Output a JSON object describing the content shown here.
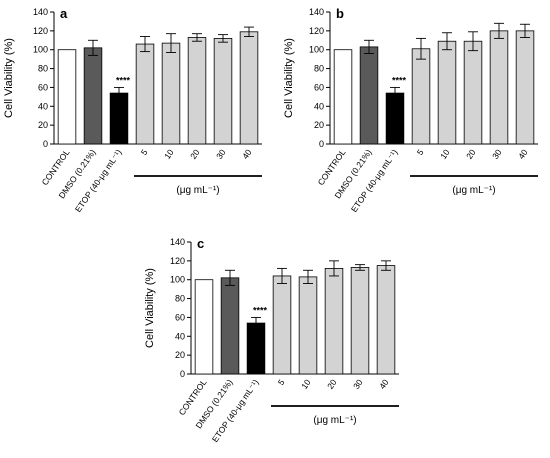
{
  "colors": {
    "control": "#ffffff",
    "dmso": "#5a5a5a",
    "etop": "#000000",
    "treatment": "#d3d3d3",
    "stroke": "#000000"
  },
  "chart_data": [
    {
      "type": "bar",
      "panel": "a",
      "ylabel": "Cell Viability (%)",
      "ylim": [
        0,
        140
      ],
      "yticks": [
        0,
        20,
        40,
        60,
        80,
        100,
        120,
        140
      ],
      "categories": [
        "CONTROL",
        "DMSO (0.21%)",
        "ETOP (40-μg mL⁻¹)",
        "5",
        "10",
        "20",
        "30",
        "40"
      ],
      "values": [
        100,
        102,
        54,
        106,
        107,
        113,
        112,
        119
      ],
      "errors": [
        0,
        8,
        6,
        8,
        10,
        4,
        4,
        5
      ],
      "significance": "****",
      "significance_index": 2,
      "group_label": "(μg mL⁻¹)"
    },
    {
      "type": "bar",
      "panel": "b",
      "ylabel": "Cell Viability (%)",
      "ylim": [
        0,
        140
      ],
      "yticks": [
        0,
        20,
        40,
        60,
        80,
        100,
        120,
        140
      ],
      "categories": [
        "CONTROL",
        "DMSO (0.21%)",
        "ETOP (40-μg mL⁻¹)",
        "5",
        "10",
        "20",
        "30",
        "40"
      ],
      "values": [
        100,
        103,
        54,
        101,
        109,
        109,
        120,
        120
      ],
      "errors": [
        0,
        7,
        6,
        11,
        9,
        10,
        8,
        7
      ],
      "significance": "****",
      "significance_index": 2,
      "group_label": "(μg mL⁻¹)"
    },
    {
      "type": "bar",
      "panel": "c",
      "ylabel": "Cell Viability (%)",
      "ylim": [
        0,
        140
      ],
      "yticks": [
        0,
        20,
        40,
        60,
        80,
        100,
        120,
        140
      ],
      "categories": [
        "CONTROL",
        "DMSO (0.21%)",
        "ETOP (40-μg mL⁻¹)",
        "5",
        "10",
        "20",
        "30",
        "40"
      ],
      "values": [
        100,
        102,
        54,
        104,
        103,
        112,
        113,
        115
      ],
      "errors": [
        0,
        8,
        6,
        8,
        7,
        8,
        3,
        5
      ],
      "significance": "****",
      "significance_index": 2,
      "group_label": "(μg mL⁻¹)"
    }
  ]
}
